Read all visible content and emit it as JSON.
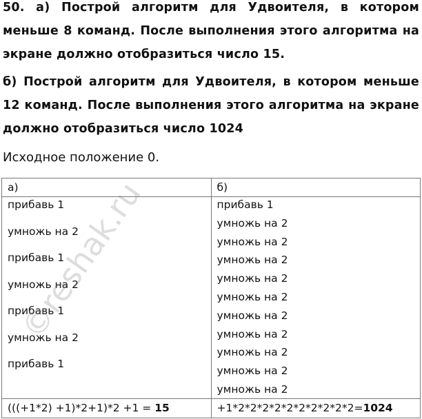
{
  "task_a": "50. а) Построй алгоритм для Удвоителя, в котором меньше 8 команд. После выполнения этого алгоритма на экране должно отобразиться число 15.",
  "task_b": "б) Построй алгоритм для Удвоителя, в котором меньше 12 команд. После выполнения этого алгоритма на экране должно отобразиться число 1024",
  "initial": "Исходное положение 0.",
  "table": {
    "headers": [
      "а)",
      "б)"
    ],
    "col_a": [
      "прибавь 1",
      "умножь на 2",
      "прибавь 1",
      "умножь на 2",
      "прибавь 1",
      "умножь на 2",
      "прибавь 1"
    ],
    "col_b": [
      "прибавь 1",
      "умножь на 2",
      "умножь на 2",
      "умножь на 2",
      "умножь на 2",
      "умножь на 2",
      "умножь на 2",
      "умножь на 2",
      "умножь на 2",
      "умножь на 2",
      "умножь на 2"
    ],
    "result_a_expr": "(((+1*2) +1)*2+1)*2 +1 = ",
    "result_a_value": "15",
    "result_b_expr": "+1*2*2*2*2*2*2*2*2*2*2=",
    "result_b_value": "1024"
  },
  "watermark": "©reshak.ru"
}
